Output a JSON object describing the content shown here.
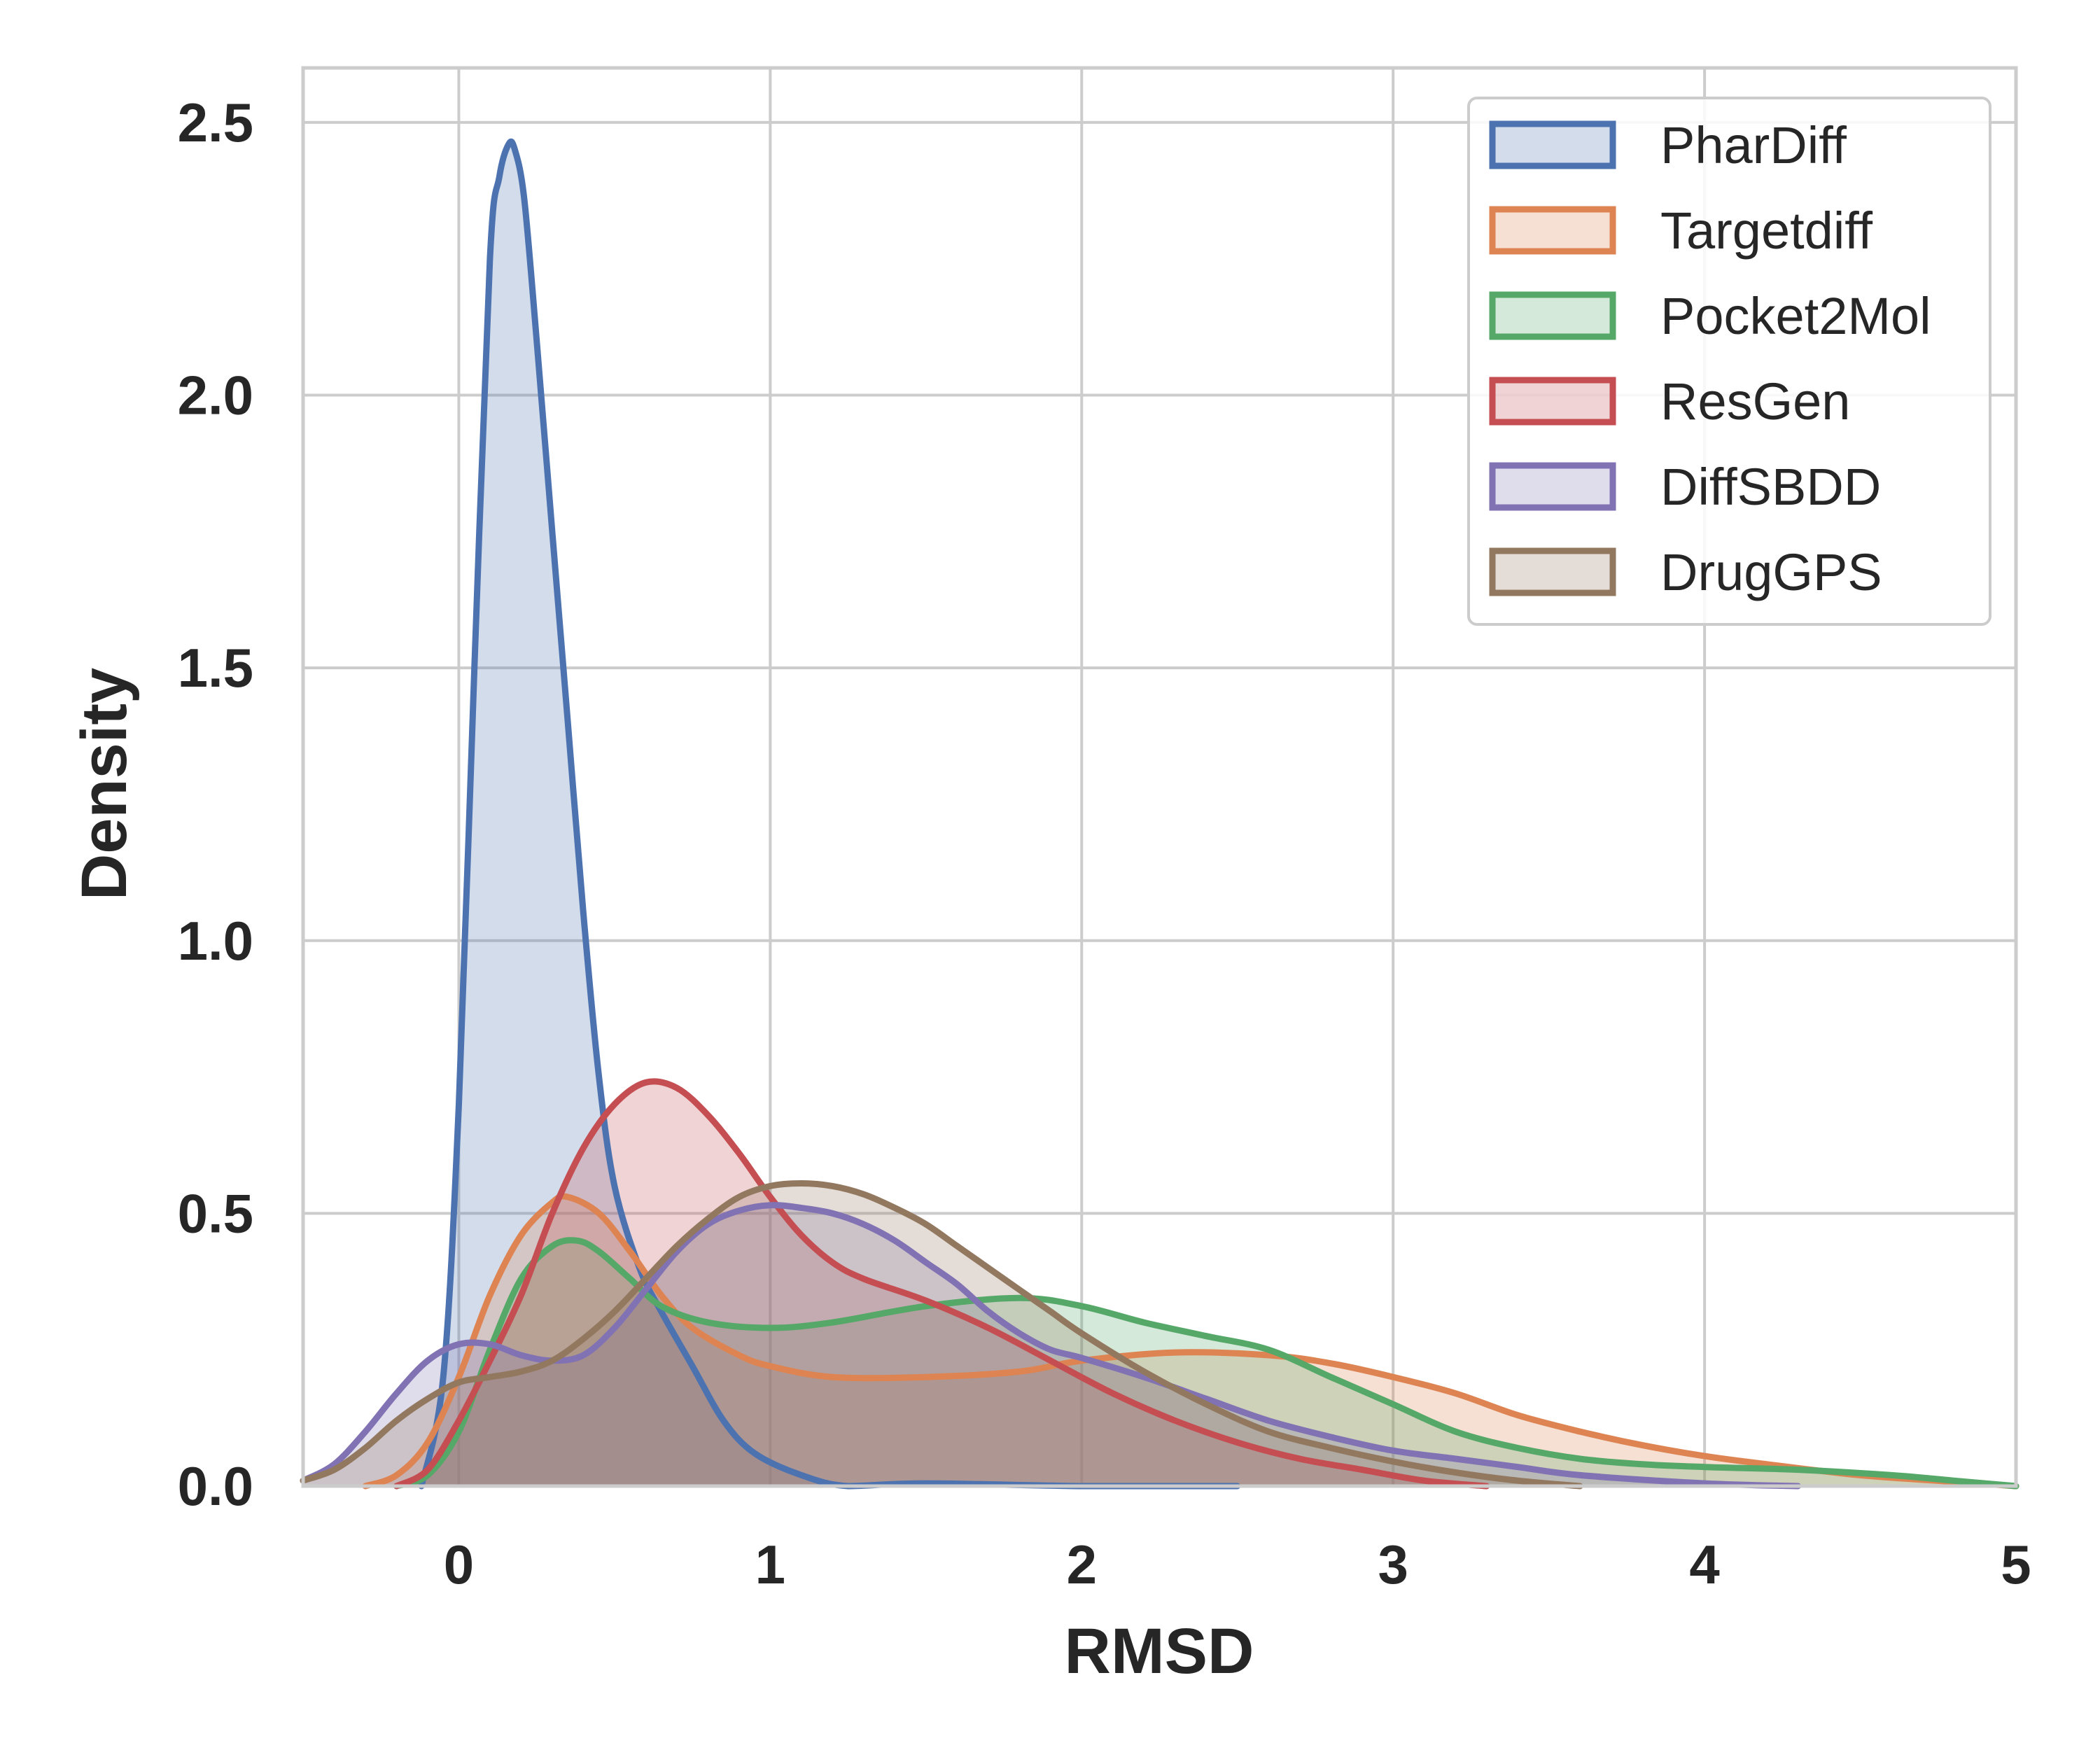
{
  "chart_data": {
    "type": "area",
    "xlabel": "RMSD",
    "ylabel": "Density",
    "xlim": [
      -0.5,
      5
    ],
    "ylim": [
      0,
      2.6
    ],
    "x_ticks": [
      {
        "value": 0,
        "label": "0"
      },
      {
        "value": 1,
        "label": "1"
      },
      {
        "value": 2,
        "label": "2"
      },
      {
        "value": 3,
        "label": "3"
      },
      {
        "value": 4,
        "label": "4"
      },
      {
        "value": 5,
        "label": "5"
      }
    ],
    "y_ticks": [
      {
        "value": 0,
        "label": "0.0"
      },
      {
        "value": 0.5,
        "label": "0.5"
      },
      {
        "value": 1,
        "label": "1.0"
      },
      {
        "value": 1.5,
        "label": "1.5"
      },
      {
        "value": 2,
        "label": "2.0"
      },
      {
        "value": 2.5,
        "label": "2.5"
      }
    ],
    "grid": true,
    "legend_position": "top-right",
    "series": [
      {
        "name": "PharDiff",
        "color": "#4c72b0",
        "points": [
          [
            -0.12,
            0.0
          ],
          [
            -0.05,
            0.2
          ],
          [
            0.0,
            0.7
          ],
          [
            0.05,
            1.5
          ],
          [
            0.1,
            2.25
          ],
          [
            0.13,
            2.4
          ],
          [
            0.16,
            2.46
          ],
          [
            0.18,
            2.45
          ],
          [
            0.21,
            2.36
          ],
          [
            0.25,
            2.1
          ],
          [
            0.3,
            1.75
          ],
          [
            0.35,
            1.4
          ],
          [
            0.4,
            1.05
          ],
          [
            0.45,
            0.75
          ],
          [
            0.5,
            0.55
          ],
          [
            0.58,
            0.4
          ],
          [
            0.65,
            0.32
          ],
          [
            0.75,
            0.22
          ],
          [
            0.85,
            0.12
          ],
          [
            0.95,
            0.06
          ],
          [
            1.1,
            0.02
          ],
          [
            1.25,
            0.0
          ],
          [
            1.5,
            0.005
          ],
          [
            2.0,
            0.0
          ],
          [
            2.5,
            0.0
          ]
        ]
      },
      {
        "name": "Targetdiff",
        "color": "#dd8452",
        "points": [
          [
            -0.3,
            0.0
          ],
          [
            -0.2,
            0.02
          ],
          [
            -0.1,
            0.08
          ],
          [
            0.0,
            0.2
          ],
          [
            0.1,
            0.35
          ],
          [
            0.2,
            0.46
          ],
          [
            0.3,
            0.52
          ],
          [
            0.35,
            0.53
          ],
          [
            0.45,
            0.5
          ],
          [
            0.55,
            0.43
          ],
          [
            0.65,
            0.35
          ],
          [
            0.75,
            0.29
          ],
          [
            0.9,
            0.24
          ],
          [
            1.0,
            0.22
          ],
          [
            1.2,
            0.2
          ],
          [
            1.5,
            0.2
          ],
          [
            1.8,
            0.21
          ],
          [
            2.0,
            0.23
          ],
          [
            2.3,
            0.245
          ],
          [
            2.6,
            0.24
          ],
          [
            2.8,
            0.225
          ],
          [
            3.0,
            0.2
          ],
          [
            3.2,
            0.17
          ],
          [
            3.4,
            0.13
          ],
          [
            3.6,
            0.1
          ],
          [
            3.8,
            0.075
          ],
          [
            4.0,
            0.055
          ],
          [
            4.2,
            0.04
          ],
          [
            4.5,
            0.02
          ],
          [
            4.8,
            0.008
          ],
          [
            5.0,
            0.0
          ]
        ]
      },
      {
        "name": "Pocket2Mol",
        "color": "#55a868",
        "points": [
          [
            -0.2,
            0.0
          ],
          [
            -0.1,
            0.02
          ],
          [
            0.0,
            0.1
          ],
          [
            0.1,
            0.25
          ],
          [
            0.2,
            0.38
          ],
          [
            0.3,
            0.44
          ],
          [
            0.38,
            0.45
          ],
          [
            0.45,
            0.43
          ],
          [
            0.55,
            0.38
          ],
          [
            0.65,
            0.33
          ],
          [
            0.8,
            0.3
          ],
          [
            1.0,
            0.29
          ],
          [
            1.2,
            0.3
          ],
          [
            1.5,
            0.33
          ],
          [
            1.8,
            0.345
          ],
          [
            2.0,
            0.33
          ],
          [
            2.2,
            0.3
          ],
          [
            2.4,
            0.275
          ],
          [
            2.6,
            0.25
          ],
          [
            2.8,
            0.2
          ],
          [
            3.0,
            0.15
          ],
          [
            3.2,
            0.1
          ],
          [
            3.4,
            0.07
          ],
          [
            3.6,
            0.05
          ],
          [
            3.8,
            0.04
          ],
          [
            4.0,
            0.035
          ],
          [
            4.3,
            0.03
          ],
          [
            4.6,
            0.02
          ],
          [
            4.8,
            0.01
          ],
          [
            5.0,
            0.0
          ]
        ]
      },
      {
        "name": "ResGen",
        "color": "#c44e52",
        "points": [
          [
            -0.2,
            0.0
          ],
          [
            -0.1,
            0.03
          ],
          [
            0.0,
            0.12
          ],
          [
            0.1,
            0.23
          ],
          [
            0.2,
            0.35
          ],
          [
            0.3,
            0.5
          ],
          [
            0.4,
            0.62
          ],
          [
            0.5,
            0.7
          ],
          [
            0.6,
            0.74
          ],
          [
            0.7,
            0.73
          ],
          [
            0.8,
            0.68
          ],
          [
            0.9,
            0.61
          ],
          [
            1.0,
            0.53
          ],
          [
            1.1,
            0.46
          ],
          [
            1.2,
            0.41
          ],
          [
            1.3,
            0.38
          ],
          [
            1.5,
            0.34
          ],
          [
            1.7,
            0.29
          ],
          [
            1.9,
            0.23
          ],
          [
            2.1,
            0.17
          ],
          [
            2.3,
            0.12
          ],
          [
            2.5,
            0.08
          ],
          [
            2.7,
            0.05
          ],
          [
            2.9,
            0.03
          ],
          [
            3.1,
            0.01
          ],
          [
            3.3,
            0.0
          ]
        ]
      },
      {
        "name": "DiffSBDD",
        "color": "#8172b3",
        "points": [
          [
            -0.5,
            0.01
          ],
          [
            -0.4,
            0.04
          ],
          [
            -0.3,
            0.1
          ],
          [
            -0.2,
            0.17
          ],
          [
            -0.1,
            0.23
          ],
          [
            0.0,
            0.26
          ],
          [
            0.1,
            0.26
          ],
          [
            0.2,
            0.24
          ],
          [
            0.3,
            0.23
          ],
          [
            0.4,
            0.24
          ],
          [
            0.5,
            0.29
          ],
          [
            0.6,
            0.36
          ],
          [
            0.7,
            0.43
          ],
          [
            0.8,
            0.48
          ],
          [
            0.9,
            0.505
          ],
          [
            1.0,
            0.515
          ],
          [
            1.1,
            0.51
          ],
          [
            1.2,
            0.5
          ],
          [
            1.3,
            0.48
          ],
          [
            1.4,
            0.45
          ],
          [
            1.5,
            0.41
          ],
          [
            1.6,
            0.37
          ],
          [
            1.7,
            0.32
          ],
          [
            1.8,
            0.28
          ],
          [
            1.9,
            0.25
          ],
          [
            2.0,
            0.235
          ],
          [
            2.2,
            0.2
          ],
          [
            2.4,
            0.16
          ],
          [
            2.6,
            0.12
          ],
          [
            2.8,
            0.09
          ],
          [
            3.0,
            0.065
          ],
          [
            3.2,
            0.05
          ],
          [
            3.4,
            0.035
          ],
          [
            3.6,
            0.02
          ],
          [
            4.0,
            0.005
          ],
          [
            4.3,
            0.0
          ]
        ]
      },
      {
        "name": "DrugGPS",
        "color": "#937860",
        "points": [
          [
            -0.5,
            0.01
          ],
          [
            -0.4,
            0.03
          ],
          [
            -0.3,
            0.07
          ],
          [
            -0.2,
            0.12
          ],
          [
            -0.1,
            0.16
          ],
          [
            0.0,
            0.19
          ],
          [
            0.1,
            0.2
          ],
          [
            0.2,
            0.21
          ],
          [
            0.3,
            0.23
          ],
          [
            0.4,
            0.27
          ],
          [
            0.5,
            0.32
          ],
          [
            0.6,
            0.38
          ],
          [
            0.7,
            0.44
          ],
          [
            0.8,
            0.49
          ],
          [
            0.9,
            0.53
          ],
          [
            1.0,
            0.55
          ],
          [
            1.1,
            0.555
          ],
          [
            1.2,
            0.55
          ],
          [
            1.3,
            0.535
          ],
          [
            1.4,
            0.51
          ],
          [
            1.5,
            0.48
          ],
          [
            1.6,
            0.44
          ],
          [
            1.7,
            0.4
          ],
          [
            1.8,
            0.36
          ],
          [
            1.9,
            0.32
          ],
          [
            2.0,
            0.28
          ],
          [
            2.2,
            0.21
          ],
          [
            2.4,
            0.15
          ],
          [
            2.6,
            0.1
          ],
          [
            2.8,
            0.07
          ],
          [
            3.0,
            0.045
          ],
          [
            3.2,
            0.025
          ],
          [
            3.4,
            0.01
          ],
          [
            3.6,
            0.0
          ]
        ]
      }
    ]
  }
}
